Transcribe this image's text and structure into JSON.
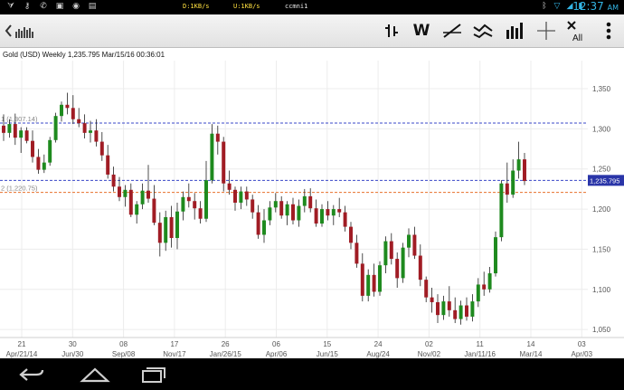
{
  "status_bar": {
    "download_rate": "D:1KB/s",
    "upload_rate": "U:1KB/s",
    "carrier": "ccmni1",
    "time": "12:37",
    "time_suffix": "AM",
    "left_icons": [
      "usb-icon",
      "key-icon",
      "phone-icon",
      "image-icon",
      "camera-icon",
      "storage-icon"
    ],
    "right_icons": [
      "bluetooth-icon",
      "wifi-icon",
      "signal-icon",
      "battery-icon"
    ]
  },
  "toolbar": {
    "back_icon": "back-arrow-icon",
    "menu_icon": "bars-icon",
    "tools": [
      {
        "name": "bar-type-icon",
        "label": ""
      },
      {
        "name": "period-button",
        "label": "W"
      },
      {
        "name": "trendline-icon",
        "label": ""
      },
      {
        "name": "pattern-icon",
        "label": ""
      },
      {
        "name": "indicators-icon",
        "label": ""
      },
      {
        "name": "crosshair-icon",
        "label": ""
      },
      {
        "name": "clear-all-button",
        "label": "All"
      },
      {
        "name": "overflow-menu-icon",
        "label": ""
      }
    ]
  },
  "chart_data": {
    "type": "candlestick",
    "title": "Gold (USD) Weekly 1,235.795 Mar/15/16 00:36:01",
    "last_price_label": "1,235.795",
    "ylim": [
      1040,
      1385
    ],
    "y_ticks": [
      "1,350",
      "1,300",
      "1,250",
      "1,200",
      "1,150",
      "1,100",
      "1,050"
    ],
    "x_ticks_top": [
      "21",
      "30",
      "08",
      "17",
      "26",
      "06",
      "15",
      "24",
      "02",
      "11",
      "14",
      "03"
    ],
    "x_ticks_bottom": [
      "Apr/21/14",
      "Jun/30",
      "Sep/08",
      "Nov/17",
      "Jan/26/15",
      "Apr/06",
      "Jun/15",
      "Aug/24",
      "Nov/02",
      "Jan/11/16",
      "Mar/14",
      "Apr/03"
    ],
    "levels": [
      {
        "label": "1 (1,307.14)",
        "value": 1307.14,
        "color": "#3a47c8"
      },
      {
        "label": "",
        "value": 1235.795,
        "color": "#3a47c8"
      },
      {
        "label": "2 (1,220.75)",
        "value": 1220.75,
        "color": "#e8702a"
      }
    ],
    "up_color": "#1e8a1e",
    "down_color": "#a01c24",
    "candles": [
      [
        1304,
        1318,
        1285,
        1295
      ],
      [
        1295,
        1312,
        1289,
        1306
      ],
      [
        1306,
        1319,
        1280,
        1289
      ],
      [
        1289,
        1302,
        1270,
        1298
      ],
      [
        1298,
        1302,
        1282,
        1285
      ],
      [
        1285,
        1298,
        1258,
        1265
      ],
      [
        1265,
        1275,
        1244,
        1249
      ],
      [
        1249,
        1268,
        1245,
        1258
      ],
      [
        1258,
        1290,
        1254,
        1286
      ],
      [
        1286,
        1320,
        1283,
        1316
      ],
      [
        1316,
        1334,
        1309,
        1330
      ],
      [
        1330,
        1345,
        1318,
        1326
      ],
      [
        1326,
        1342,
        1306,
        1312
      ],
      [
        1312,
        1326,
        1302,
        1307
      ],
      [
        1307,
        1318,
        1288,
        1295
      ],
      [
        1295,
        1310,
        1283,
        1298
      ],
      [
        1298,
        1312,
        1278,
        1284
      ],
      [
        1284,
        1296,
        1260,
        1267
      ],
      [
        1267,
        1280,
        1238,
        1243
      ],
      [
        1243,
        1253,
        1222,
        1228
      ],
      [
        1228,
        1240,
        1210,
        1215
      ],
      [
        1215,
        1230,
        1203,
        1224
      ],
      [
        1224,
        1232,
        1190,
        1193
      ],
      [
        1193,
        1210,
        1182,
        1206
      ],
      [
        1206,
        1232,
        1200,
        1223
      ],
      [
        1223,
        1255,
        1208,
        1213
      ],
      [
        1213,
        1230,
        1180,
        1183
      ],
      [
        1183,
        1196,
        1141,
        1158
      ],
      [
        1158,
        1198,
        1148,
        1190
      ],
      [
        1190,
        1204,
        1152,
        1164
      ],
      [
        1164,
        1208,
        1150,
        1197
      ],
      [
        1197,
        1222,
        1186,
        1215
      ],
      [
        1215,
        1232,
        1202,
        1210
      ],
      [
        1210,
        1220,
        1187,
        1201
      ],
      [
        1201,
        1210,
        1182,
        1188
      ],
      [
        1188,
        1260,
        1184,
        1236
      ],
      [
        1236,
        1306,
        1232,
        1294
      ],
      [
        1294,
        1304,
        1268,
        1284
      ],
      [
        1284,
        1290,
        1222,
        1232
      ],
      [
        1232,
        1248,
        1218,
        1224
      ],
      [
        1224,
        1228,
        1198,
        1208
      ],
      [
        1208,
        1228,
        1200,
        1222
      ],
      [
        1222,
        1228,
        1204,
        1212
      ],
      [
        1212,
        1218,
        1188,
        1196
      ],
      [
        1196,
        1205,
        1163,
        1168
      ],
      [
        1168,
        1200,
        1158,
        1186
      ],
      [
        1186,
        1210,
        1180,
        1202
      ],
      [
        1202,
        1220,
        1196,
        1210
      ],
      [
        1210,
        1216,
        1188,
        1192
      ],
      [
        1192,
        1210,
        1180,
        1206
      ],
      [
        1206,
        1214,
        1181,
        1186
      ],
      [
        1186,
        1212,
        1178,
        1204
      ],
      [
        1204,
        1225,
        1196,
        1216
      ],
      [
        1216,
        1226,
        1196,
        1201
      ],
      [
        1201,
        1212,
        1178,
        1182
      ],
      [
        1182,
        1206,
        1178,
        1200
      ],
      [
        1200,
        1210,
        1186,
        1192
      ],
      [
        1192,
        1205,
        1180,
        1200
      ],
      [
        1200,
        1214,
        1190,
        1196
      ],
      [
        1196,
        1204,
        1172,
        1178
      ],
      [
        1178,
        1184,
        1150,
        1158
      ],
      [
        1158,
        1168,
        1127,
        1132
      ],
      [
        1132,
        1145,
        1085,
        1092
      ],
      [
        1092,
        1125,
        1085,
        1118
      ],
      [
        1118,
        1132,
        1091,
        1097
      ],
      [
        1097,
        1135,
        1092,
        1130
      ],
      [
        1130,
        1166,
        1120,
        1160
      ],
      [
        1160,
        1170,
        1131,
        1138
      ],
      [
        1138,
        1146,
        1102,
        1114
      ],
      [
        1114,
        1158,
        1108,
        1152
      ],
      [
        1152,
        1176,
        1140,
        1168
      ],
      [
        1168,
        1178,
        1138,
        1142
      ],
      [
        1142,
        1156,
        1104,
        1112
      ],
      [
        1112,
        1116,
        1084,
        1090
      ],
      [
        1090,
        1102,
        1071,
        1084
      ],
      [
        1084,
        1094,
        1058,
        1068
      ],
      [
        1068,
        1092,
        1062,
        1085
      ],
      [
        1085,
        1104,
        1066,
        1074
      ],
      [
        1074,
        1090,
        1058,
        1063
      ],
      [
        1063,
        1086,
        1056,
        1080
      ],
      [
        1080,
        1090,
        1061,
        1066
      ],
      [
        1066,
        1094,
        1060,
        1085
      ],
      [
        1085,
        1114,
        1078,
        1106
      ],
      [
        1106,
        1122,
        1092,
        1100
      ],
      [
        1100,
        1128,
        1096,
        1120
      ],
      [
        1120,
        1172,
        1116,
        1165
      ],
      [
        1165,
        1236,
        1160,
        1232
      ],
      [
        1232,
        1258,
        1208,
        1218
      ],
      [
        1218,
        1262,
        1214,
        1248
      ],
      [
        1248,
        1284,
        1238,
        1262
      ],
      [
        1262,
        1270,
        1230,
        1235
      ]
    ]
  },
  "nav_bar": {
    "buttons": [
      "back-icon",
      "home-icon",
      "recents-icon"
    ]
  }
}
